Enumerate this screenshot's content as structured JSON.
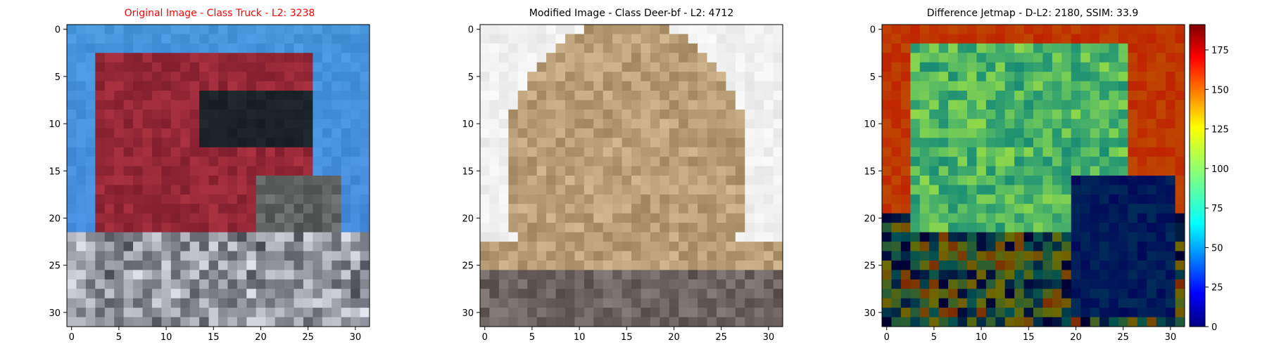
{
  "figure": {
    "panels": [
      {
        "title": "Original Image - Class Truck - L2: 3238",
        "title_color": "#ff0000"
      },
      {
        "title": "Modified Image - Class Deer-bf - L2: 4712",
        "title_color": "#000000"
      },
      {
        "title": "Difference Jetmap - D-L2: 2180, SSIM: 33.9",
        "title_color": "#000000"
      }
    ]
  },
  "chart_data": [
    {
      "type": "heatmap",
      "title": "Original Image - Class Truck - L2: 3238",
      "image_size": [
        32,
        32
      ],
      "xlim": [
        -0.5,
        31.5
      ],
      "ylim": [
        31.5,
        -0.5
      ],
      "xticks": [
        0,
        5,
        10,
        15,
        20,
        25,
        30
      ],
      "yticks": [
        0,
        5,
        10,
        15,
        20,
        25,
        30
      ],
      "content": "pixelated red truck on blue sky background"
    },
    {
      "type": "heatmap",
      "title": "Modified Image - Class Deer-bf - L2: 4712",
      "image_size": [
        32,
        32
      ],
      "xlim": [
        -0.5,
        31.5
      ],
      "ylim": [
        31.5,
        -0.5
      ],
      "xticks": [
        0,
        5,
        10,
        15,
        20,
        25,
        30
      ],
      "yticks": [
        0,
        5,
        10,
        15,
        20,
        25,
        30
      ],
      "content": "blurred beige/brown pixel image on white background"
    },
    {
      "type": "heatmap",
      "title": "Difference Jetmap - D-L2: 2180, SSIM: 33.9",
      "image_size": [
        32,
        32
      ],
      "xlim": [
        -0.5,
        31.5
      ],
      "ylim": [
        31.5,
        -0.5
      ],
      "xticks": [
        0,
        5,
        10,
        15,
        20,
        25,
        30
      ],
      "yticks": [
        0,
        5,
        10,
        15,
        20,
        25,
        30
      ],
      "colorbar": {
        "colormap": "jet",
        "range": [
          0,
          191
        ],
        "ticks": [
          0,
          25,
          50,
          75,
          100,
          125,
          150,
          175
        ]
      },
      "content": "difference map: orange background, green truck region, dark blue lower right"
    }
  ]
}
